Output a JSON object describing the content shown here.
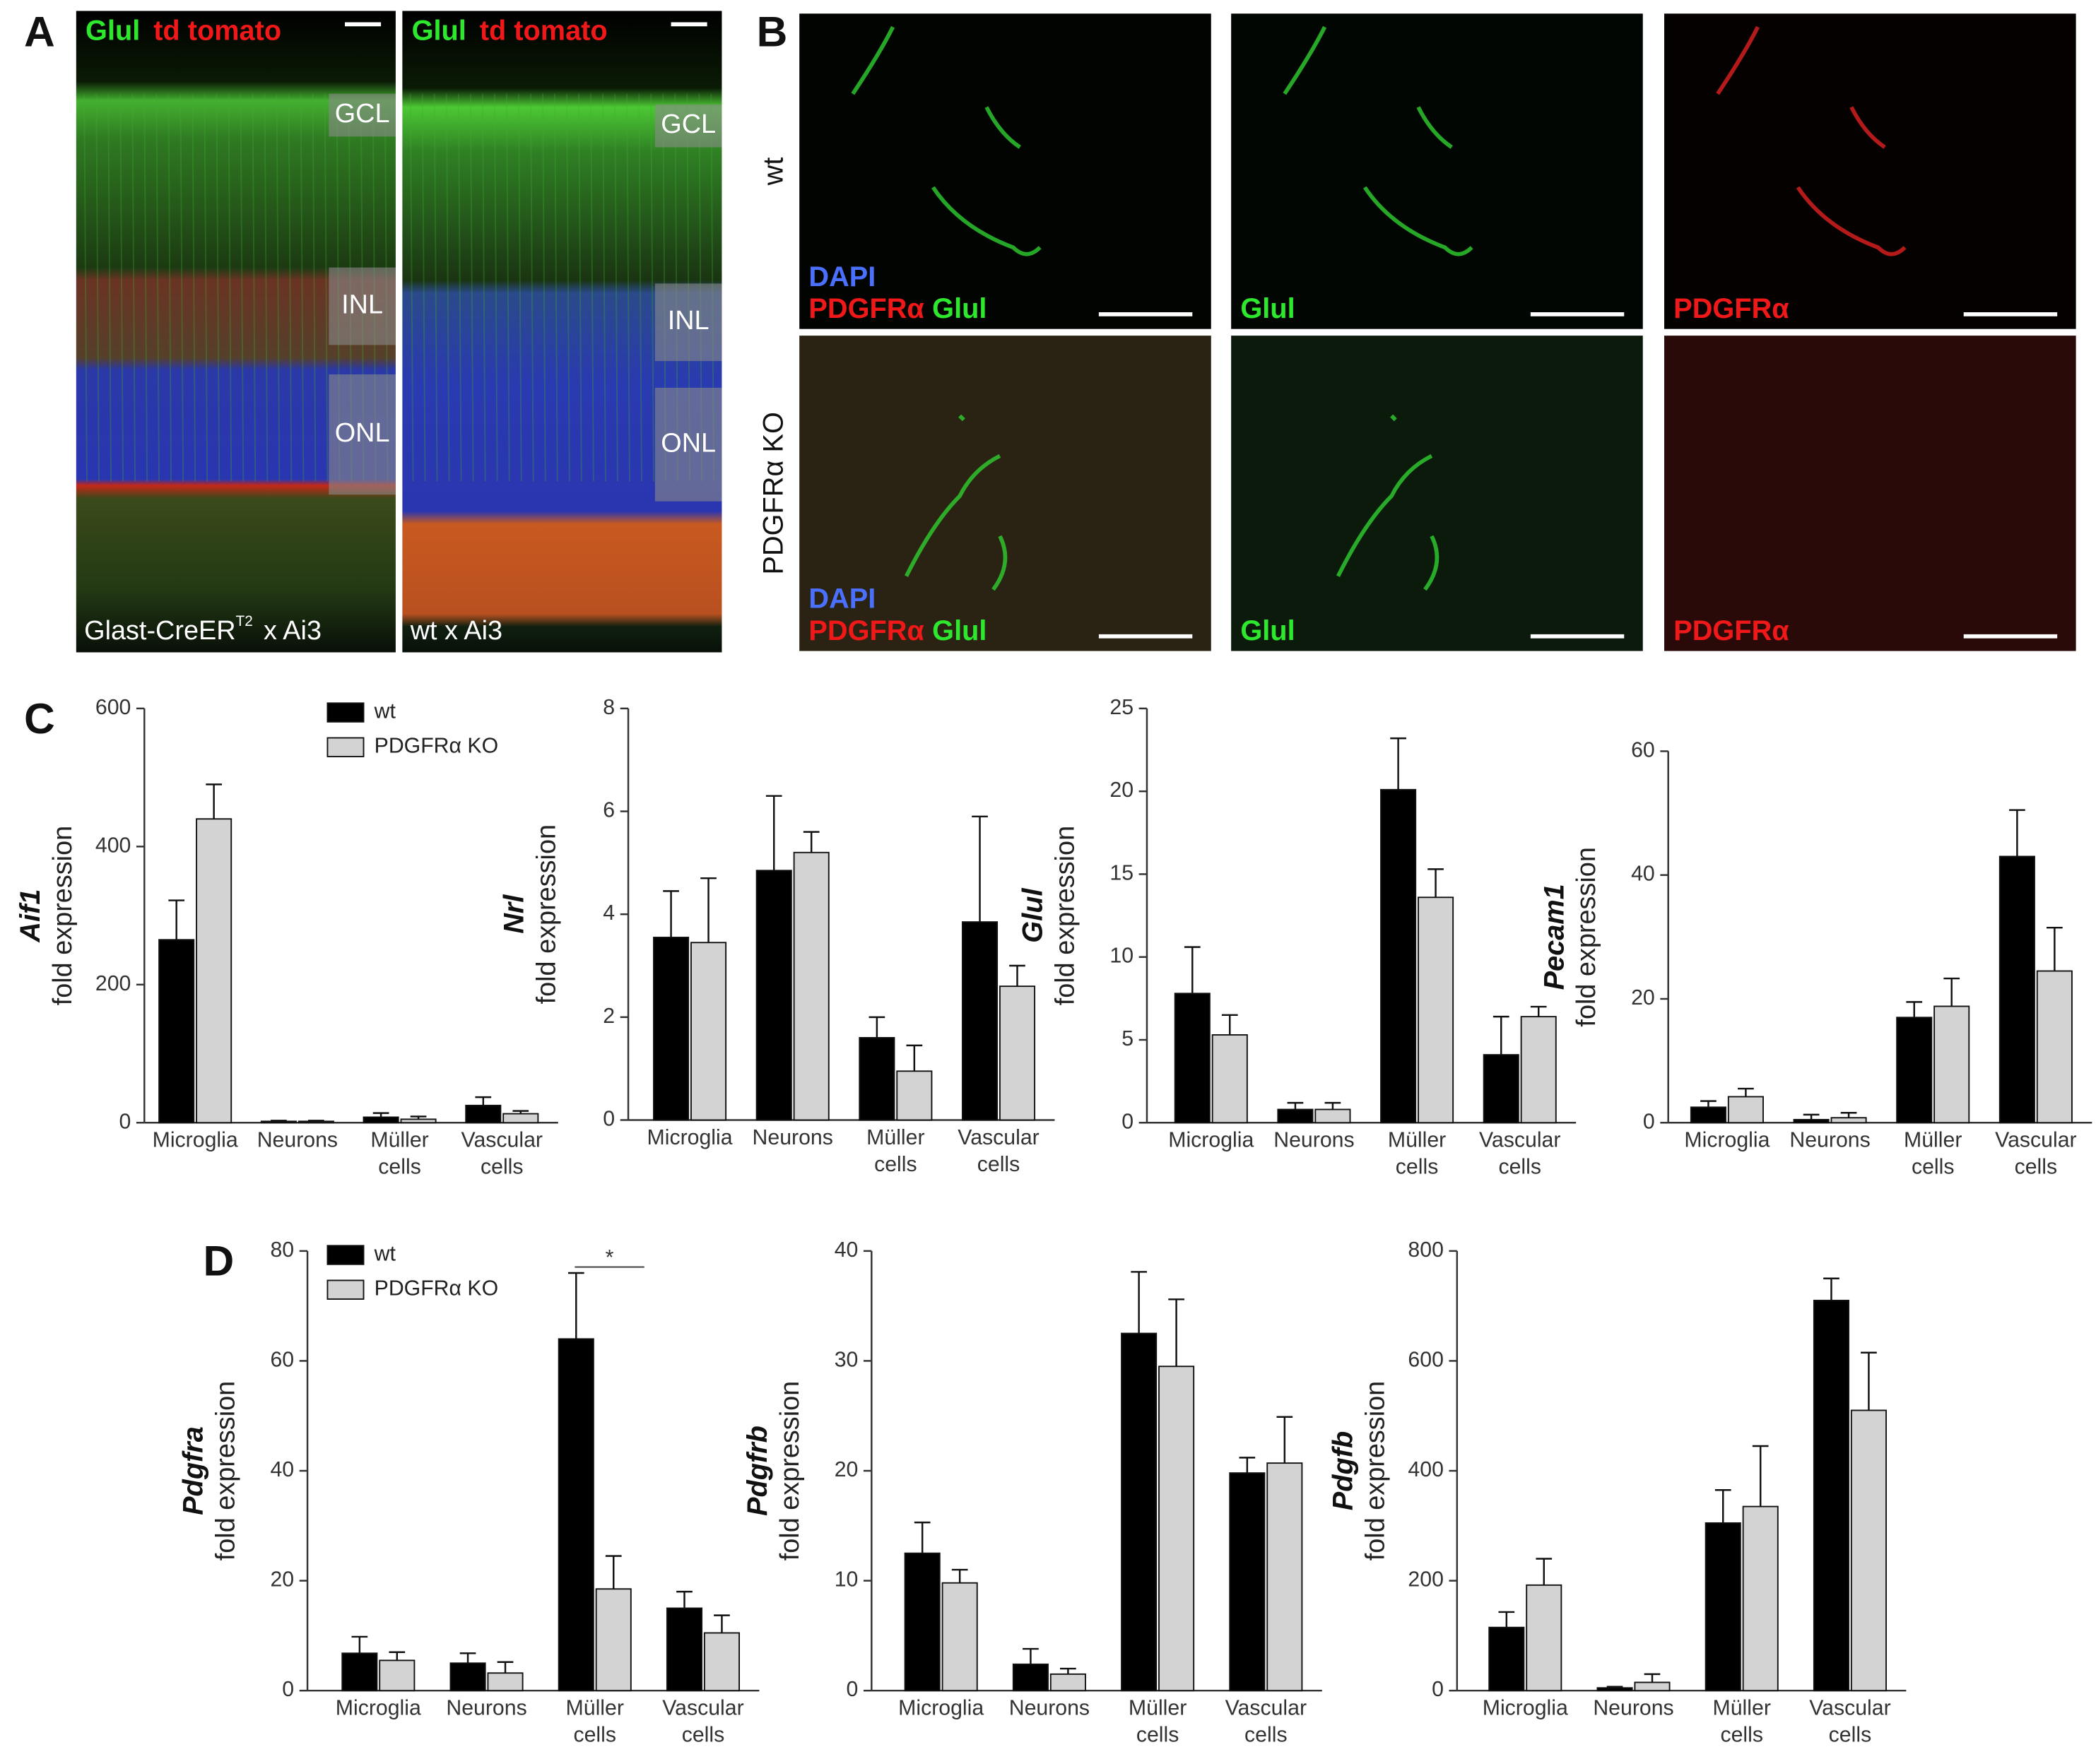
{
  "panel_a": {
    "label": "A",
    "images": [
      {
        "markers": [
          {
            "text": "Glul",
            "color": "#2ee82e"
          },
          {
            "text": "td tomato",
            "color": "#f01818"
          }
        ],
        "layers": [
          "GCL",
          "INL",
          "ONL"
        ],
        "caption": "Glast-CreER",
        "caption_sup": "T2",
        "caption_tail": "x Ai3"
      },
      {
        "markers": [
          {
            "text": "Glul",
            "color": "#2ee82e"
          },
          {
            "text": "td tomato",
            "color": "#f01818"
          }
        ],
        "layers": [
          "GCL",
          "INL",
          "ONL"
        ],
        "caption": "wt x Ai3"
      }
    ]
  },
  "panel_b": {
    "label": "B",
    "rows": [
      "wt",
      "PDGFRα KO"
    ],
    "tiles": [
      [
        [
          {
            "text": "DAPI",
            "color": "#4a70ff"
          }
        ],
        [
          {
            "text": "PDGFRα",
            "color": "#f01818"
          },
          {
            "text": "Glul",
            "color": "#2ee82e"
          }
        ]
      ],
      [
        [
          {
            "text": "Glul",
            "color": "#2ee82e"
          }
        ]
      ],
      [
        [
          {
            "text": "PDGFRα",
            "color": "#f01818"
          }
        ]
      ],
      [
        [
          {
            "text": "DAPI",
            "color": "#4a70ff"
          }
        ],
        [
          {
            "text": "PDGFRα",
            "color": "#f01818"
          },
          {
            "text": "Glul",
            "color": "#2ee82e"
          }
        ]
      ],
      [
        [
          {
            "text": "Glul",
            "color": "#2ee82e"
          }
        ]
      ],
      [
        [
          {
            "text": "PDGFRα",
            "color": "#f01818"
          }
        ]
      ]
    ]
  },
  "panel_c": {
    "label": "C"
  },
  "panel_d": {
    "label": "D"
  },
  "chart_data": [
    {
      "type": "bar",
      "y_gene": "Aif1",
      "y_label": "fold expression",
      "categories": [
        "Microglia",
        "Neurons",
        "Müller cells",
        "Vascular cells"
      ],
      "series": [
        {
          "name": "wt",
          "color": "#000000",
          "values": [
            265,
            2,
            8,
            25
          ],
          "errors": [
            57,
            1,
            6,
            12
          ]
        },
        {
          "name": "PDGFRα KO",
          "color": "#d3d3d3",
          "values": [
            440,
            2,
            5,
            13
          ],
          "errors": [
            50,
            1,
            4,
            4
          ]
        }
      ],
      "ylim": [
        0,
        600
      ],
      "yticks": [
        0,
        200,
        400,
        600
      ],
      "legend": "top"
    },
    {
      "type": "bar",
      "y_gene": "Nrl",
      "y_label": "fold expression",
      "categories": [
        "Microglia",
        "Neurons",
        "Müller cells",
        "Vascular cells"
      ],
      "series": [
        {
          "color": "#000000",
          "values": [
            3.55,
            4.85,
            1.6,
            3.85
          ],
          "errors": [
            0.9,
            1.45,
            0.4,
            2.05
          ]
        },
        {
          "color": "#d3d3d3",
          "values": [
            3.45,
            5.2,
            0.95,
            2.6
          ],
          "errors": [
            1.25,
            0.4,
            0.5,
            0.4
          ]
        }
      ],
      "ylim": [
        0,
        8
      ],
      "yticks": [
        0,
        2,
        4,
        6,
        8
      ]
    },
    {
      "type": "bar",
      "y_gene": "Glul",
      "y_label": "fold expression",
      "categories": [
        "Microglia",
        "Neurons",
        "Müller cells",
        "Vascular cells"
      ],
      "series": [
        {
          "color": "#000000",
          "values": [
            7.8,
            0.8,
            20.1,
            4.1
          ],
          "errors": [
            2.8,
            0.4,
            3.1,
            2.3
          ]
        },
        {
          "color": "#d3d3d3",
          "values": [
            5.3,
            0.8,
            13.6,
            6.4
          ],
          "errors": [
            1.2,
            0.4,
            1.7,
            0.6
          ]
        }
      ],
      "ylim": [
        0,
        25
      ],
      "yticks": [
        0,
        5,
        10,
        15,
        20,
        25
      ]
    },
    {
      "type": "bar",
      "y_gene": "Pecam1",
      "y_label": "fold expression",
      "categories": [
        "Microglia",
        "Neurons",
        "Müller cells",
        "Vascular cells"
      ],
      "series": [
        {
          "color": "#000000",
          "values": [
            2.5,
            0.5,
            17,
            43
          ],
          "errors": [
            1,
            0.8,
            2.5,
            7.5
          ]
        },
        {
          "color": "#d3d3d3",
          "values": [
            4.2,
            0.8,
            18.8,
            24.5
          ],
          "errors": [
            1.3,
            0.8,
            4.5,
            7
          ]
        }
      ],
      "ylim": [
        0,
        60
      ],
      "yticks": [
        0,
        20,
        40,
        60
      ]
    },
    {
      "type": "bar",
      "y_gene": "Pdgfra",
      "y_label": "fold expression",
      "categories": [
        "Microglia",
        "Neurons",
        "Müller cells",
        "Vascular cells"
      ],
      "series": [
        {
          "name": "wt",
          "color": "#000000",
          "values": [
            6.8,
            5,
            64,
            15
          ],
          "errors": [
            3,
            1.8,
            12,
            3
          ]
        },
        {
          "name": "PDGFRα KO",
          "color": "#d3d3d3",
          "values": [
            5.5,
            3.2,
            18.5,
            10.5
          ],
          "errors": [
            1.5,
            2,
            6,
            3.2
          ]
        }
      ],
      "ylim": [
        0,
        80
      ],
      "yticks": [
        0,
        20,
        40,
        60,
        80
      ],
      "legend": "top",
      "annotation": "*"
    },
    {
      "type": "bar",
      "y_gene": "Pdgfrb",
      "y_label": "fold expression",
      "categories": [
        "Microglia",
        "Neurons",
        "Müller cells",
        "Vascular cells"
      ],
      "series": [
        {
          "color": "#000000",
          "values": [
            12.5,
            2.4,
            32.5,
            19.8
          ],
          "errors": [
            2.8,
            1.4,
            5.6,
            1.4
          ]
        },
        {
          "color": "#d3d3d3",
          "values": [
            9.8,
            1.5,
            29.5,
            20.7
          ],
          "errors": [
            1.2,
            0.5,
            6.1,
            4.2
          ]
        }
      ],
      "ylim": [
        0,
        40
      ],
      "yticks": [
        0,
        10,
        20,
        30,
        40
      ]
    },
    {
      "type": "bar",
      "y_gene": "Pdgfb",
      "y_label": "fold expression",
      "categories": [
        "Microglia",
        "Neurons",
        "Müller cells",
        "Vascular cells"
      ],
      "series": [
        {
          "color": "#000000",
          "values": [
            115,
            5,
            305,
            710
          ],
          "errors": [
            28,
            2,
            60,
            40
          ]
        },
        {
          "color": "#d3d3d3",
          "values": [
            192,
            15,
            335,
            510
          ],
          "errors": [
            48,
            15,
            110,
            105
          ]
        }
      ],
      "ylim": [
        0,
        800
      ],
      "yticks": [
        0,
        200,
        400,
        600,
        800
      ]
    }
  ]
}
